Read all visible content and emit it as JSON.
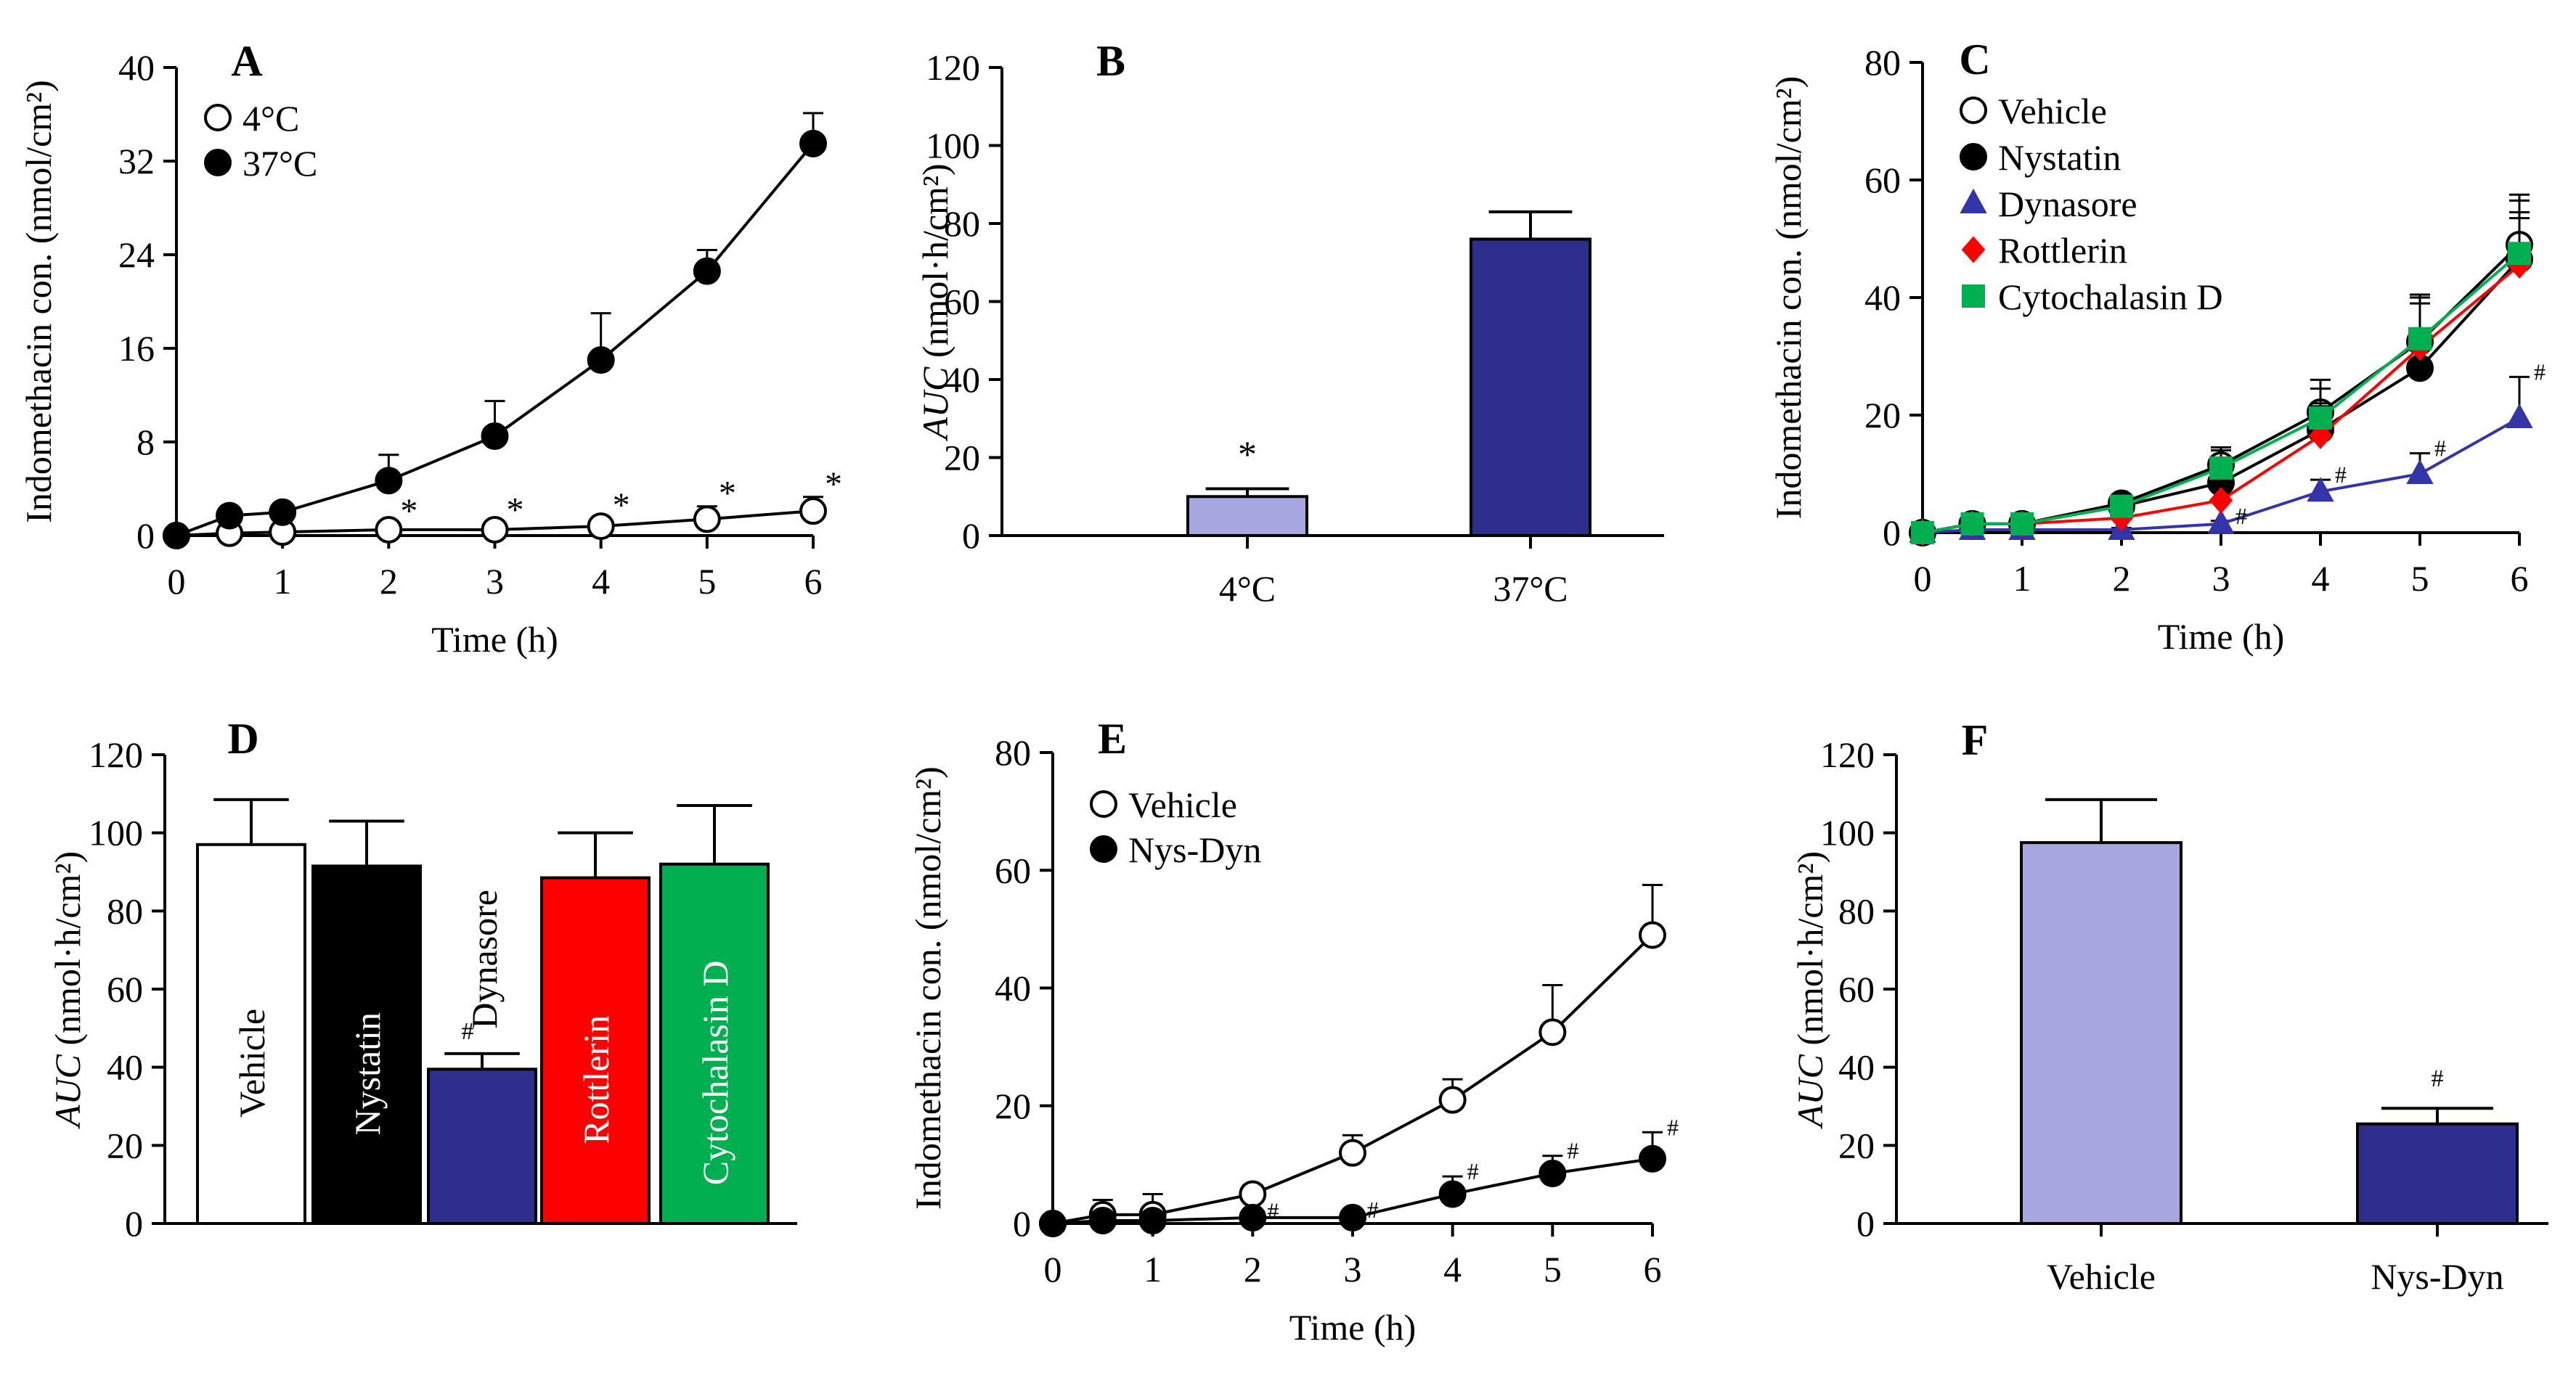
{
  "figure": {
    "panels": [
      "A",
      "B",
      "C",
      "D",
      "E",
      "F"
    ]
  },
  "colors": {
    "axis": "#000000",
    "light_purple": "#a7a7e1",
    "navy": "#2e2e8e",
    "black": "#000000",
    "white": "#ffffff",
    "red": "#ff0000",
    "green": "#00b050",
    "blue_marker": "#3333aa"
  },
  "chart_data": [
    {
      "id": "A",
      "type": "line",
      "panel_label": "A",
      "xlabel": "Time (h)",
      "ylabel": "Indomethacin  con.  (nmol/cm²)",
      "xlim": [
        0,
        6
      ],
      "ylim": [
        0,
        40
      ],
      "xticks": [
        0,
        1,
        2,
        3,
        4,
        5,
        6
      ],
      "yticks": [
        0,
        8,
        16,
        24,
        32,
        40
      ],
      "legend_position": "top-left",
      "series": [
        {
          "name": "4°C",
          "marker": "open-circle",
          "color": "#ffffff",
          "x": [
            0,
            0.5,
            1,
            2,
            3,
            4,
            5,
            6
          ],
          "y": [
            0,
            0.2,
            0.3,
            0.5,
            0.5,
            0.8,
            1.4,
            2.1
          ],
          "err": [
            0,
            0.2,
            0.3,
            0.5,
            0.6,
            0.7,
            1.1,
            1.2
          ],
          "annotations": [
            "",
            "",
            "",
            "*",
            "*",
            "*",
            "*",
            "*"
          ]
        },
        {
          "name": "37°C",
          "marker": "filled-circle",
          "color": "#000000",
          "x": [
            0,
            0.5,
            1,
            2,
            3,
            4,
            5,
            6
          ],
          "y": [
            0,
            1.7,
            2.0,
            4.7,
            8.5,
            15.0,
            22.6,
            33.5
          ],
          "err": [
            0,
            0.3,
            0.3,
            2.2,
            3.0,
            4.0,
            1.8,
            2.6
          ],
          "annotations": [
            "",
            "",
            "",
            "",
            "",
            "",
            "",
            ""
          ]
        }
      ]
    },
    {
      "id": "B",
      "type": "bar",
      "panel_label": "B",
      "ylabel_italic": "AUC",
      "ylabel_rest": " (nmol·h/cm²)",
      "ylim": [
        0,
        120
      ],
      "yticks": [
        0,
        20,
        40,
        60,
        80,
        100,
        120
      ],
      "categories": [
        "4°C",
        "37°C"
      ],
      "values": [
        10,
        76
      ],
      "errors": [
        2,
        7
      ],
      "colors": [
        "#a7a7e1",
        "#2e2e8e"
      ],
      "annotations": [
        "*",
        ""
      ]
    },
    {
      "id": "C",
      "type": "line",
      "panel_label": "C",
      "xlabel": "Time (h)",
      "ylabel": "Indomethacin  con.  (nmol/cm²)",
      "xlim": [
        0,
        6
      ],
      "ylim": [
        0,
        80
      ],
      "xticks": [
        0,
        1,
        2,
        3,
        4,
        5,
        6
      ],
      "yticks": [
        0,
        20,
        40,
        60,
        80
      ],
      "legend_position": "top-left",
      "series": [
        {
          "name": "Vehicle",
          "marker": "open-circle",
          "color": "#ffffff",
          "line": "#000000",
          "x": [
            0,
            0.5,
            1,
            2,
            3,
            4,
            5,
            6
          ],
          "y": [
            0,
            1.5,
            1.5,
            5,
            11.5,
            20.5,
            32.5,
            49
          ],
          "err": [
            0,
            0.5,
            0.5,
            1.5,
            3,
            5.5,
            7.5,
            8.5
          ],
          "annotations": [
            "",
            "",
            "",
            "",
            "",
            "",
            "",
            ""
          ]
        },
        {
          "name": "Nystatin",
          "marker": "filled-circle",
          "color": "#000000",
          "line": "#000000",
          "x": [
            0,
            0.5,
            1,
            2,
            3,
            4,
            5,
            6
          ],
          "y": [
            0,
            1.5,
            1.5,
            4.5,
            8.5,
            17.5,
            28,
            46.5
          ],
          "err": [
            0,
            0.5,
            0.5,
            1.5,
            2.5,
            4.5,
            6,
            8
          ],
          "annotations": [
            "",
            "",
            "",
            "",
            "",
            "",
            "",
            ""
          ]
        },
        {
          "name": "Dynasore",
          "marker": "triangle",
          "color": "#3333aa",
          "line": "#3333aa",
          "x": [
            0,
            0.5,
            1,
            2,
            3,
            4,
            5,
            6
          ],
          "y": [
            0,
            0.5,
            0.5,
            0.5,
            1.5,
            7,
            10,
            19.5
          ],
          "err": [
            0,
            0.2,
            0.2,
            0.3,
            0.5,
            2,
            3.5,
            7
          ],
          "annotations": [
            "",
            "",
            "",
            "",
            "#",
            "#",
            "#",
            "#"
          ]
        },
        {
          "name": "Rottlerin",
          "marker": "diamond",
          "color": "#ff0000",
          "line": "#ff0000",
          "x": [
            0,
            0.5,
            1,
            2,
            3,
            4,
            5,
            6
          ],
          "y": [
            0,
            1.5,
            1.5,
            2.5,
            5.5,
            16.5,
            31.5,
            45.5
          ],
          "err": [
            0,
            0.5,
            0.5,
            1,
            2,
            5,
            7.5,
            8
          ],
          "annotations": [
            "",
            "",
            "",
            "",
            "",
            "",
            "",
            ""
          ]
        },
        {
          "name": "Cytochalasin  D",
          "marker": "square",
          "color": "#00b050",
          "line": "#00b050",
          "x": [
            0,
            0.5,
            1,
            2,
            3,
            4,
            5,
            6
          ],
          "y": [
            0,
            1.5,
            1.5,
            4.5,
            11,
            19.5,
            33,
            47.5
          ],
          "err": [
            0,
            0.5,
            0.5,
            1.5,
            3,
            5,
            7.5,
            9
          ],
          "annotations": [
            "",
            "",
            "",
            "",
            "",
            "",
            "",
            ""
          ]
        }
      ]
    },
    {
      "id": "D",
      "type": "bar",
      "panel_label": "D",
      "ylabel_italic": "AUC",
      "ylabel_rest": " (nmol·h/cm²)",
      "ylim": [
        0,
        120
      ],
      "yticks": [
        0,
        20,
        40,
        60,
        80,
        100,
        120
      ],
      "categories": [
        "Vehicle",
        "Nystatin",
        "Dynasore",
        "Rottlerin",
        "Cytochalasin  D"
      ],
      "values": [
        97,
        91.5,
        39.5,
        88.5,
        92
      ],
      "errors": [
        11.5,
        11.5,
        4,
        11.5,
        15
      ],
      "colors": [
        "#ffffff",
        "#000000",
        "#2e2e8e",
        "#ff0000",
        "#00b050"
      ],
      "label_colors": [
        "#000000",
        "#ffffff",
        "#000000",
        "#ffffff",
        "#ffffff"
      ],
      "annotations": [
        "",
        "",
        "#",
        "",
        ""
      ]
    },
    {
      "id": "E",
      "type": "line",
      "panel_label": "E",
      "xlabel": "Time (h)",
      "ylabel": "Indomethacin  con.  (nmol/cm²)",
      "xlim": [
        0,
        6
      ],
      "ylim": [
        0,
        80
      ],
      "xticks": [
        0,
        1,
        2,
        3,
        4,
        5,
        6
      ],
      "yticks": [
        0,
        20,
        40,
        60,
        80
      ],
      "legend_position": "top-left",
      "series": [
        {
          "name": "Vehicle",
          "marker": "open-circle",
          "color": "#ffffff",
          "x": [
            0,
            0.5,
            1,
            2,
            3,
            4,
            5,
            6
          ],
          "y": [
            0,
            1.5,
            1.5,
            5,
            12,
            21,
            32.5,
            49
          ],
          "err": [
            0,
            2.5,
            3.5,
            1.5,
            3,
            3.5,
            8,
            8.5
          ],
          "annotations": [
            "",
            "",
            "",
            "",
            "",
            "",
            "",
            ""
          ]
        },
        {
          "name": "Nys-Dyn",
          "marker": "filled-circle",
          "color": "#000000",
          "x": [
            0,
            0.5,
            1,
            2,
            3,
            4,
            5,
            6
          ],
          "y": [
            0,
            0.5,
            0.5,
            1,
            1,
            5,
            8.5,
            11
          ],
          "err": [
            0,
            0.3,
            0.3,
            0.3,
            0.5,
            3,
            3,
            4.5
          ],
          "annotations": [
            "",
            "",
            "",
            "#",
            "#",
            "#",
            "#",
            "#"
          ]
        }
      ]
    },
    {
      "id": "F",
      "type": "bar",
      "panel_label": "F",
      "ylabel_italic": "AUC",
      "ylabel_rest": " (nmol·h/cm²)",
      "ylim": [
        0,
        120
      ],
      "yticks": [
        0,
        20,
        40,
        60,
        80,
        100,
        120
      ],
      "categories": [
        "Vehicle",
        "Nys-Dyn"
      ],
      "values": [
        97.5,
        25.5
      ],
      "errors": [
        11,
        4
      ],
      "colors": [
        "#a7a7e1",
        "#2e2e8e"
      ],
      "annotations": [
        "",
        "#"
      ]
    }
  ]
}
